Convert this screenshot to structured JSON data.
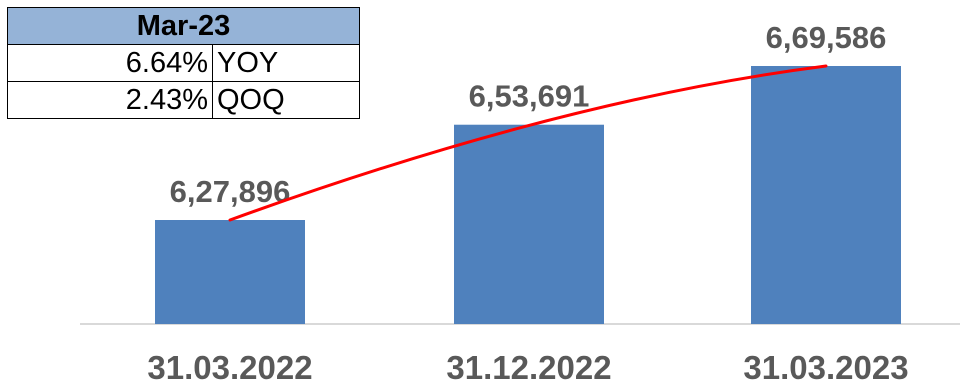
{
  "summary_table": {
    "header": "Mar-23",
    "rows": [
      {
        "value": "6.64%",
        "label": "YOY"
      },
      {
        "value": "2.43%",
        "label": "QOQ"
      }
    ]
  },
  "colors": {
    "bar": "#4f81bd",
    "trend_line": "#ff0000",
    "table_header_bg": "#95b3d7",
    "label_text": "#595959"
  },
  "chart_data": {
    "type": "bar",
    "categories": [
      "31.03.2022",
      "31.12.2022",
      "31.03.2023"
    ],
    "values": [
      627896,
      653691,
      669586
    ],
    "value_labels": [
      "6,27,896",
      "6,53,691",
      "6,69,586"
    ],
    "title": "",
    "xlabel": "",
    "ylabel": "",
    "grid": false,
    "legend": "none",
    "trend_line": true
  }
}
